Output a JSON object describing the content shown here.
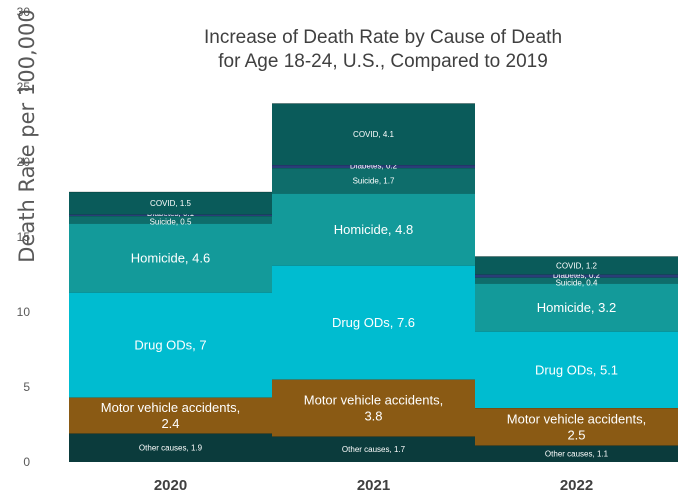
{
  "chart_data": {
    "type": "bar",
    "stacked": true,
    "title": [
      "Increase of Death Rate by Cause of Death",
      "for Age 18-24, U.S., Compared to 2019"
    ],
    "ylabel": "Death Rate per 100,000",
    "xlabel": "",
    "ylim": [
      0,
      30
    ],
    "yticks": [
      0,
      5,
      10,
      15,
      20,
      25,
      30
    ],
    "grid": false,
    "legend": "none",
    "categories": [
      "2020",
      "2021",
      "2022"
    ],
    "series": [
      {
        "name": "Other causes",
        "color": "#0b3b3c",
        "values": [
          1.9,
          1.7,
          1.1
        ],
        "labels": [
          "Other causes, 1.9",
          "Other causes, 1.7",
          "Other causes, 1.1"
        ]
      },
      {
        "name": "Motor vehicle accidents",
        "color": "#8a5a14",
        "values": [
          2.4,
          3.8,
          2.5
        ],
        "labels": [
          [
            "Motor vehicle accidents,",
            "2.4"
          ],
          [
            "Motor vehicle accidents,",
            "3.8"
          ],
          [
            "Motor vehicle accidents,",
            "2.5"
          ]
        ]
      },
      {
        "name": "Drug ODs",
        "color": "#00bcd0",
        "values": [
          7,
          7.6,
          5.1
        ],
        "labels": [
          "Drug ODs, 7",
          "Drug ODs, 7.6",
          "Drug ODs, 5.1"
        ]
      },
      {
        "name": "Homicide",
        "color": "#139a9a",
        "values": [
          4.6,
          4.8,
          3.2
        ],
        "labels": [
          "Homicide, 4.6",
          "Homicide, 4.8",
          "Homicide, 3.2"
        ]
      },
      {
        "name": "Suicide",
        "color": "#0e6d6b",
        "values": [
          0.5,
          1.7,
          0.4
        ],
        "labels": [
          "Suicide, 0.5",
          "Suicide, 1.7",
          "Suicide, 0.4"
        ]
      },
      {
        "name": "Diabetes",
        "color": "#2a3d78",
        "values": [
          0.1,
          0.2,
          0.2
        ],
        "labels": [
          "Diabetes, 0.1",
          "Diabetes, 0.2",
          "Diabetes, 0.2"
        ]
      },
      {
        "name": "COVID",
        "color": "#0a5b5a",
        "values": [
          1.5,
          4.1,
          1.2
        ],
        "labels": [
          "COVID, 1.5",
          "COVID, 4.1",
          "COVID, 1.2"
        ]
      }
    ]
  }
}
